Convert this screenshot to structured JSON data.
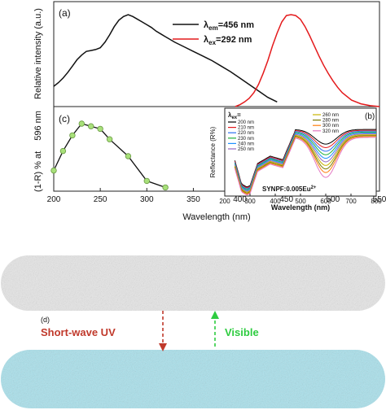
{
  "chart_data": [
    {
      "panel": "(a)",
      "type": "line",
      "ylabel": "Relative intensity (a.u.)",
      "xlabel": "Wavelength (nm)",
      "xlim": [
        200,
        550
      ],
      "xticks": [
        "200",
        "250",
        "300",
        "350",
        "400",
        "450",
        "500",
        "550"
      ],
      "legend": "top-center",
      "series": [
        {
          "name_main": "λ",
          "name_sub": "em",
          "name_rest": "=456 nm",
          "color": "#111111",
          "x": [
            200,
            205,
            210,
            215,
            220,
            225,
            230,
            235,
            240,
            245,
            250,
            255,
            260,
            265,
            270,
            275,
            280,
            285,
            290,
            295,
            300,
            305,
            310,
            315,
            320,
            325,
            330,
            340,
            350,
            360,
            370,
            380,
            390,
            400,
            410,
            420,
            430,
            440
          ],
          "y": [
            0.22,
            0.26,
            0.31,
            0.37,
            0.44,
            0.51,
            0.56,
            0.6,
            0.61,
            0.62,
            0.64,
            0.7,
            0.78,
            0.87,
            0.94,
            0.98,
            1.0,
            0.98,
            0.95,
            0.92,
            0.89,
            0.86,
            0.82,
            0.79,
            0.76,
            0.73,
            0.7,
            0.65,
            0.6,
            0.55,
            0.5,
            0.44,
            0.38,
            0.31,
            0.24,
            0.17,
            0.1,
            0.05
          ]
        },
        {
          "name_main": "λ",
          "name_sub": "ex",
          "name_rest": "=292 nm",
          "color": "#e41a1c",
          "x": [
            395,
            400,
            405,
            410,
            415,
            420,
            425,
            430,
            435,
            440,
            445,
            450,
            455,
            460,
            465,
            470,
            475,
            480,
            485,
            490,
            495,
            500,
            505,
            510,
            520,
            530,
            540,
            550
          ],
          "y": [
            0.0,
            0.02,
            0.05,
            0.09,
            0.15,
            0.24,
            0.36,
            0.5,
            0.66,
            0.8,
            0.92,
            0.99,
            1.0,
            0.99,
            0.95,
            0.87,
            0.77,
            0.66,
            0.55,
            0.45,
            0.36,
            0.28,
            0.21,
            0.15,
            0.07,
            0.03,
            0.01,
            0.0
          ]
        }
      ]
    },
    {
      "panel": "(c)",
      "type": "scatter",
      "ylabel_main": "(1-R) % at",
      "ylabel_value": "596 nm",
      "xlabel": "Wavelength (nm)",
      "xlim": [
        200,
        550
      ],
      "series": [
        {
          "marker_color": "#a8e07a",
          "x": [
            200,
            210,
            220,
            230,
            240,
            250,
            260,
            280,
            300,
            320
          ],
          "y": [
            0.28,
            0.58,
            0.82,
            1.0,
            0.96,
            0.92,
            0.76,
            0.5,
            0.12,
            0.02
          ]
        }
      ]
    },
    {
      "panel": "(b)",
      "type": "line",
      "ylabel": "Reflectance (R%)",
      "xlabel": "Wavelength (nm)",
      "xlim": [
        200,
        800
      ],
      "xticks": [
        "200",
        "300",
        "400",
        "500",
        "600",
        "700",
        "800"
      ],
      "annotation_main": "SYNPF:0.005Eu",
      "annotation_sup": "2+",
      "legend_header_main": "λ",
      "legend_header_sub": "ex",
      "legend_header_rest": "=",
      "series": [
        {
          "name": "200 nm",
          "color": "#000000",
          "dip": 0.78
        },
        {
          "name": "210 nm",
          "color": "#e41a1c",
          "dip": 0.74
        },
        {
          "name": "220 nm",
          "color": "#2b6ff0",
          "dip": 0.7
        },
        {
          "name": "230 nm",
          "color": "#1fb03a",
          "dip": 0.66
        },
        {
          "name": "240 nm",
          "color": "#1e90ff",
          "dip": 0.62
        },
        {
          "name": "250 nm",
          "color": "#9467bd",
          "dip": 0.58
        },
        {
          "name": "260 nm",
          "color": "#c8b400",
          "dip": 0.54
        },
        {
          "name": "280 nm",
          "color": "#7a7a00",
          "dip": 0.5
        },
        {
          "name": "300 nm",
          "color": "#ff7f0e",
          "dip": 0.46
        },
        {
          "name": "320 nm",
          "color": "#e377c2",
          "dip": 0.4
        }
      ]
    }
  ],
  "photo_panel": {
    "label": "(d)",
    "down_label": "Short-wave UV",
    "up_label": "Visible",
    "down_color": "#c0392b",
    "up_color": "#2ecc40",
    "top_strip_color": "#e6e6e6",
    "bottom_strip_color": "#a9e1ec"
  }
}
